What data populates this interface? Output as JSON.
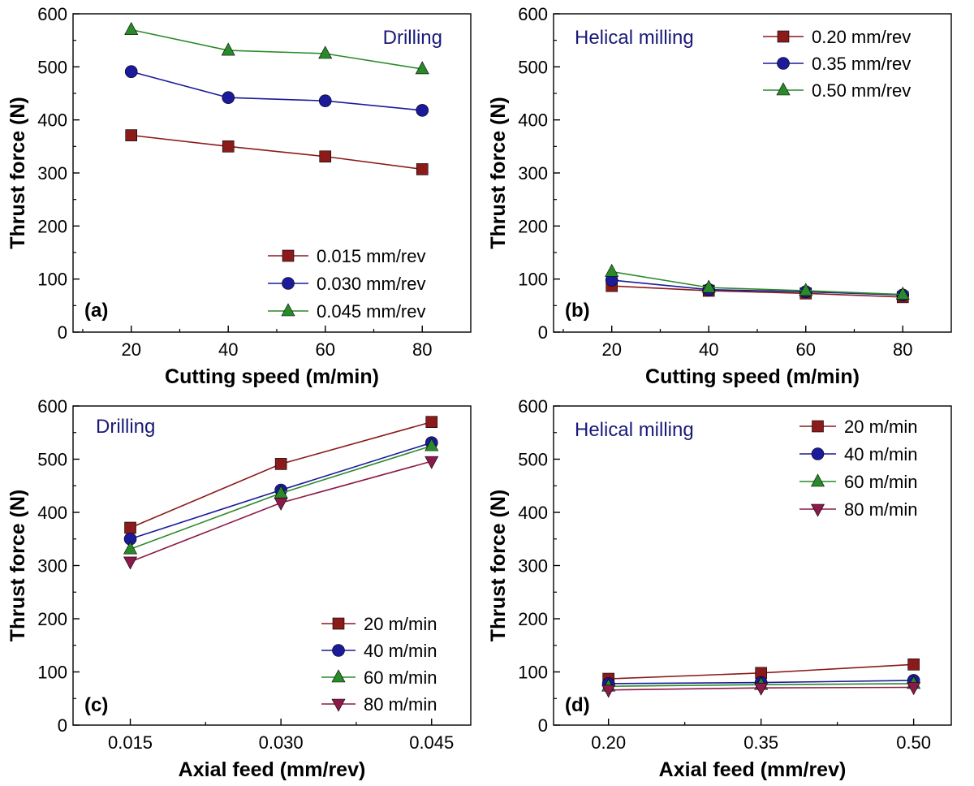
{
  "chart_data": [
    {
      "id": "a",
      "type": "line",
      "panel_label": "(a)",
      "title": "Drilling",
      "title_color": "#1a1a7a",
      "xlabel": "Cutting speed (m/min)",
      "ylabel": "Thrust force (N)",
      "x_ticks": [
        20,
        40,
        60,
        80
      ],
      "x_tick_labels": [
        "20",
        "40",
        "60",
        "80"
      ],
      "xlim": [
        8,
        90
      ],
      "ylim": [
        0,
        600
      ],
      "y_ticks": [
        0,
        100,
        200,
        300,
        400,
        500,
        600
      ],
      "y_tick_labels": [
        "0",
        "100",
        "200",
        "300",
        "400",
        "500",
        "600"
      ],
      "legend_position": "bottom-right",
      "series": [
        {
          "name": "0.015 mm/rev",
          "color": "#8b1a1a",
          "marker": "square",
          "x": [
            20,
            40,
            60,
            80
          ],
          "values": [
            371,
            350,
            331,
            307
          ]
        },
        {
          "name": "0.030 mm/rev",
          "color": "#1a1a9a",
          "marker": "circle",
          "x": [
            20,
            40,
            60,
            80
          ],
          "values": [
            491,
            442,
            436,
            418
          ]
        },
        {
          "name": "0.045 mm/rev",
          "color": "#2a8a2a",
          "marker": "triangle-up",
          "x": [
            20,
            40,
            60,
            80
          ],
          "values": [
            570,
            531,
            525,
            496
          ]
        }
      ]
    },
    {
      "id": "b",
      "type": "line",
      "panel_label": "(b)",
      "title": "Helical milling",
      "title_color": "#1a1a7a",
      "xlabel": "Cutting speed (m/min)",
      "ylabel": "Thrust force (N)",
      "x_ticks": [
        20,
        40,
        60,
        80
      ],
      "x_tick_labels": [
        "20",
        "40",
        "60",
        "80"
      ],
      "xlim": [
        8,
        90
      ],
      "ylim": [
        0,
        600
      ],
      "y_ticks": [
        0,
        100,
        200,
        300,
        400,
        500,
        600
      ],
      "y_tick_labels": [
        "0",
        "100",
        "200",
        "300",
        "400",
        "500",
        "600"
      ],
      "legend_position": "top-right",
      "series": [
        {
          "name": "0.20 mm/rev",
          "color": "#8b1a1a",
          "marker": "square",
          "x": [
            20,
            40,
            60,
            80
          ],
          "values": [
            87,
            78,
            73,
            66
          ]
        },
        {
          "name": "0.35 mm/rev",
          "color": "#1a1a9a",
          "marker": "circle",
          "x": [
            20,
            40,
            60,
            80
          ],
          "values": [
            98,
            80,
            76,
            70
          ]
        },
        {
          "name": "0.50 mm/rev",
          "color": "#2a8a2a",
          "marker": "triangle-up",
          "x": [
            20,
            40,
            60,
            80
          ],
          "values": [
            114,
            84,
            78,
            71
          ]
        }
      ]
    },
    {
      "id": "c",
      "type": "line",
      "panel_label": "(c)",
      "title": "Drilling",
      "title_color": "#1a1a7a",
      "xlabel": "Axial feed (mm/rev)",
      "ylabel": "Thrust force (N)",
      "x_ticks": [
        0.015,
        0.03,
        0.045
      ],
      "x_tick_labels": [
        "0.015",
        "0.030",
        "0.045"
      ],
      "x_minor_ticks": [
        0.0225,
        0.0375
      ],
      "xlim": [
        0.0093,
        0.0489
      ],
      "ylim": [
        0,
        600
      ],
      "y_ticks": [
        0,
        100,
        200,
        300,
        400,
        500,
        600
      ],
      "y_tick_labels": [
        "0",
        "100",
        "200",
        "300",
        "400",
        "500",
        "600"
      ],
      "legend_position": "bottom-right",
      "series": [
        {
          "name": "20 m/min",
          "color": "#8b1a1a",
          "marker": "square",
          "x": [
            0.015,
            0.03,
            0.045
          ],
          "values": [
            371,
            491,
            570
          ]
        },
        {
          "name": "40 m/min",
          "color": "#1a1a9a",
          "marker": "circle",
          "x": [
            0.015,
            0.03,
            0.045
          ],
          "values": [
            350,
            442,
            531
          ]
        },
        {
          "name": "60 m/min",
          "color": "#2a8a2a",
          "marker": "triangle-up",
          "x": [
            0.015,
            0.03,
            0.045
          ],
          "values": [
            331,
            436,
            525
          ]
        },
        {
          "name": "80 m/min",
          "color": "#8b1a4a",
          "marker": "triangle-down",
          "x": [
            0.015,
            0.03,
            0.045
          ],
          "values": [
            307,
            418,
            496
          ]
        }
      ]
    },
    {
      "id": "d",
      "type": "line",
      "panel_label": "(d)",
      "title": "Helical milling",
      "title_color": "#1a1a7a",
      "xlabel": "Axial feed (mm/rev)",
      "ylabel": "Thrust force (N)",
      "x_ticks": [
        0.2,
        0.35,
        0.5
      ],
      "x_tick_labels": [
        "0.20",
        "0.35",
        "0.50"
      ],
      "x_minor_ticks": [
        0.275,
        0.425
      ],
      "xlim": [
        0.146,
        0.537
      ],
      "ylim": [
        0,
        600
      ],
      "y_ticks": [
        0,
        100,
        200,
        300,
        400,
        500,
        600
      ],
      "y_tick_labels": [
        "0",
        "100",
        "200",
        "300",
        "400",
        "500",
        "600"
      ],
      "legend_position": "top-right",
      "series": [
        {
          "name": "20 m/min",
          "color": "#8b1a1a",
          "marker": "square",
          "x": [
            0.2,
            0.35,
            0.5
          ],
          "values": [
            87,
            98,
            114
          ]
        },
        {
          "name": "40 m/min",
          "color": "#1a1a9a",
          "marker": "circle",
          "x": [
            0.2,
            0.35,
            0.5
          ],
          "values": [
            78,
            80,
            84
          ]
        },
        {
          "name": "60 m/min",
          "color": "#2a8a2a",
          "marker": "triangle-up",
          "x": [
            0.2,
            0.35,
            0.5
          ],
          "values": [
            73,
            76,
            78
          ]
        },
        {
          "name": "80 m/min",
          "color": "#8b1a4a",
          "marker": "triangle-down",
          "x": [
            0.2,
            0.35,
            0.5
          ],
          "values": [
            66,
            70,
            71
          ]
        }
      ]
    }
  ]
}
